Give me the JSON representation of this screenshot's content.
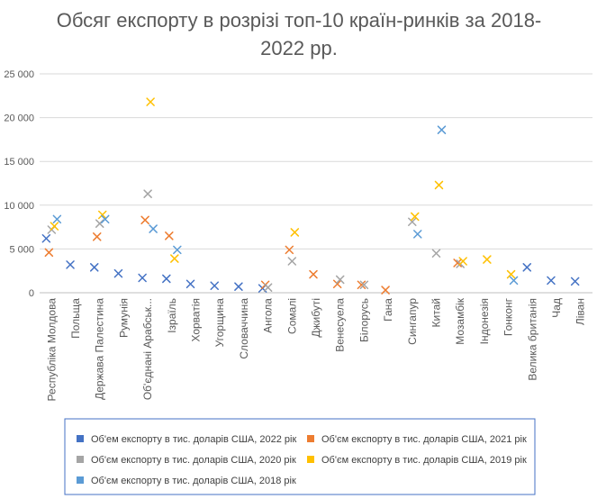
{
  "chart_data": {
    "type": "scatter",
    "title_lines": [
      "Обсяг експорту в розрізі топ-10 країн-ринків за 2018-",
      "2022 рр."
    ],
    "xlabel": "",
    "ylabel": "",
    "ylim": [
      0,
      25000
    ],
    "yticks": [
      {
        "value": 0,
        "label": "0"
      },
      {
        "value": 5000,
        "label": "5 000"
      },
      {
        "value": 10000,
        "label": "10 000"
      },
      {
        "value": 15000,
        "label": "15 000"
      },
      {
        "value": 20000,
        "label": "20 000"
      },
      {
        "value": 25000,
        "label": "25 000"
      }
    ],
    "grid": true,
    "legend_position": "bottom",
    "categories": [
      "Республіка Молдова",
      "Польща",
      "Держава Палестина",
      "Румунія",
      "Об'єднані Арабськ...",
      "Ізраїль",
      "Хорватія",
      "Угорщина",
      "Словаччина",
      "Ангола",
      "Сомалі",
      "Джибуті",
      "Венесуела",
      "Білорусь",
      "Гана",
      "Сингапур",
      "Китай",
      "Мозамбік",
      "Індонезія",
      "Гонконг",
      "Велика британія",
      "Чад",
      "Ліван"
    ],
    "series": [
      {
        "name": "Об'ем експорту в тис. доларів США, 2022 рік",
        "color": "#4472C4",
        "marker": "x",
        "offset": -6,
        "values": [
          6200,
          3200,
          2900,
          2200,
          1700,
          1600,
          1000,
          800,
          700,
          500,
          null,
          null,
          null,
          null,
          null,
          null,
          null,
          null,
          null,
          null,
          2900,
          1400,
          1300
        ]
      },
      {
        "name": "Об'єм експорту в тис. доларів США, 2021 рік",
        "color": "#ED7D31",
        "marker": "x",
        "offset": -3,
        "values": [
          4600,
          null,
          6400,
          null,
          8300,
          6500,
          null,
          null,
          null,
          900,
          4900,
          2100,
          1000,
          900,
          300,
          null,
          null,
          3400,
          null,
          null,
          null,
          null,
          null
        ]
      },
      {
        "name": "Об'єм експорту в тис. доларів США, 2020 рік",
        "color": "#A5A5A5",
        "marker": "x",
        "offset": 0,
        "values": [
          7200,
          null,
          7900,
          null,
          11300,
          null,
          null,
          null,
          null,
          600,
          3600,
          null,
          1500,
          900,
          null,
          8100,
          4500,
          3300,
          null,
          null,
          null,
          null,
          null
        ]
      },
      {
        "name": "Об'єм експорту в тис. доларів США, 2019 рік",
        "color": "#FFC000",
        "marker": "x",
        "offset": 3,
        "values": [
          7600,
          null,
          8900,
          null,
          21800,
          3900,
          null,
          null,
          null,
          null,
          6900,
          null,
          null,
          null,
          null,
          8700,
          12300,
          3600,
          3800,
          2100,
          null,
          null,
          null
        ]
      },
      {
        "name": "Об'єм експорту в тис. доларів США, 2018 рік",
        "color": "#5B9BD5",
        "marker": "x",
        "offset": 6,
        "values": [
          8400,
          null,
          8400,
          null,
          7300,
          4900,
          null,
          null,
          null,
          null,
          null,
          null,
          null,
          null,
          null,
          6700,
          18600,
          null,
          null,
          1400,
          null,
          null,
          null
        ]
      }
    ]
  }
}
